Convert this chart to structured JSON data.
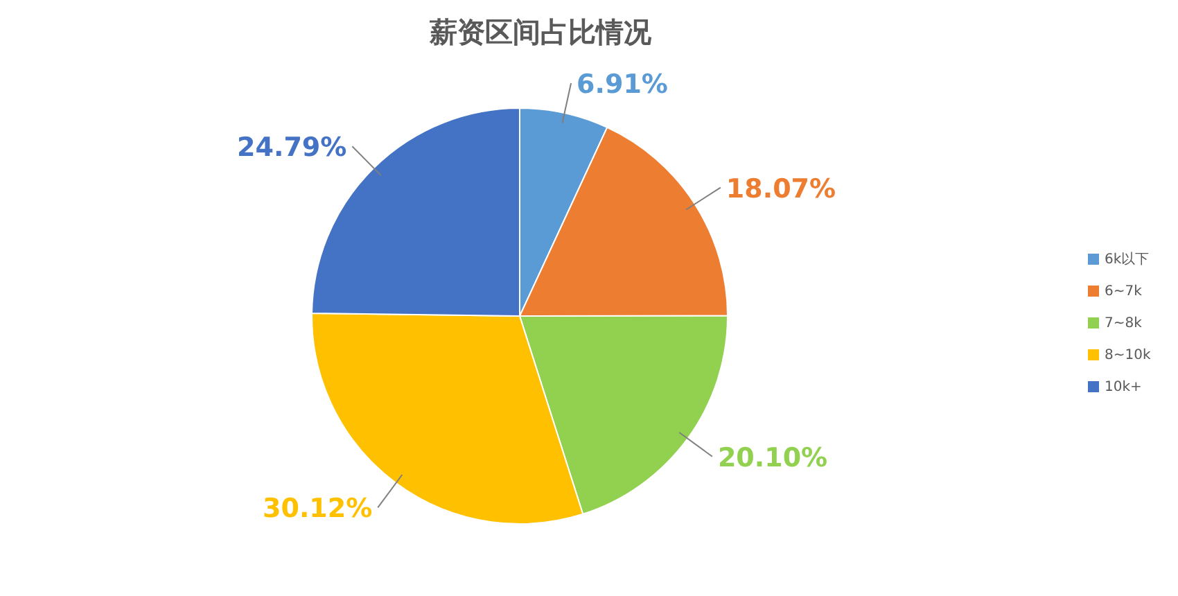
{
  "chart_data": {
    "type": "pie",
    "title": "薪资区间占比情况",
    "categories": [
      "6k以下",
      "6~7k",
      "7~8k",
      "8~10k",
      "10k+"
    ],
    "values": [
      6.91,
      18.07,
      20.1,
      30.12,
      24.79
    ],
    "value_labels": [
      "6.91%",
      "18.07%",
      "20.10%",
      "30.12%",
      "24.79%"
    ],
    "colors": [
      "#5b9bd5",
      "#ed7d31",
      "#92d050",
      "#ffc000",
      "#4472c4"
    ],
    "legend": "right"
  }
}
